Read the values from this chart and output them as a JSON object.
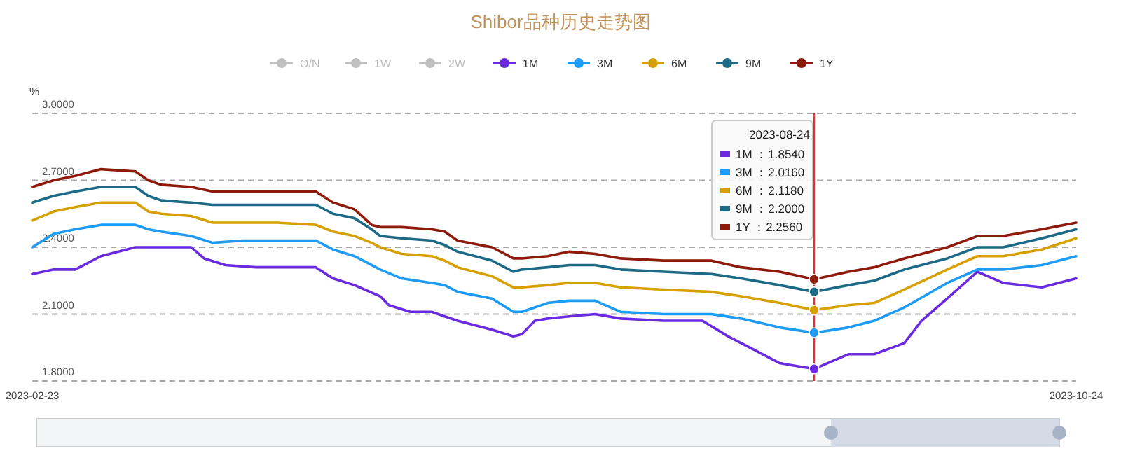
{
  "chart_data": {
    "type": "line",
    "title": "Shibor品种历史走势图",
    "ylabel": "%",
    "legend": "top",
    "grid": "y",
    "line_style": "solid",
    "xlim": [
      "2023-02-23",
      "2023-10-24"
    ],
    "xticks": [
      {
        "value": "2023-02-23",
        "label": "2023-02-23"
      },
      {
        "value": "2023-10-24",
        "label": "2023-10-24"
      }
    ],
    "ylim": [
      1.8,
      3.0
    ],
    "yticks": [
      {
        "value": 1.8,
        "label": "1.8000"
      },
      {
        "value": 2.1,
        "label": "2.1000"
      },
      {
        "value": 2.4,
        "label": "2.4000"
      },
      {
        "value": 2.7,
        "label": "2.7000"
      },
      {
        "value": 3.0,
        "label": "3.0000"
      }
    ],
    "series": [
      {
        "name": "O/N",
        "color": "#c0c0c0"
      },
      {
        "name": "1W",
        "color": "#c0c0c0"
      },
      {
        "name": "2W",
        "color": "#c0c0c0"
      },
      {
        "name": "1M",
        "color": "#6a2be0",
        "x": [
          "2023-02-23",
          "2023-02-28",
          "2023-03-05",
          "2023-03-11",
          "2023-03-19",
          "2023-03-25",
          "2023-04-01",
          "2023-04-04",
          "2023-04-09",
          "2023-04-16",
          "2023-04-30",
          "2023-05-04",
          "2023-05-09",
          "2023-05-15",
          "2023-05-17",
          "2023-05-22",
          "2023-05-27",
          "2023-05-30",
          "2023-06-02",
          "2023-06-10",
          "2023-06-15",
          "2023-06-17",
          "2023-06-20",
          "2023-06-23",
          "2023-06-28",
          "2023-07-04",
          "2023-07-10",
          "2023-07-20",
          "2023-07-29",
          "2023-08-04",
          "2023-08-10",
          "2023-08-16",
          "2023-08-19",
          "2023-08-24",
          "2023-09-01",
          "2023-09-07",
          "2023-09-14",
          "2023-09-18",
          "2023-09-24",
          "2023-10-01",
          "2023-10-07",
          "2023-10-16",
          "2023-10-24"
        ],
        "values": [
          2.28,
          2.3,
          2.3,
          2.36,
          2.4,
          2.4,
          2.4,
          2.35,
          2.32,
          2.31,
          2.31,
          2.26,
          2.23,
          2.18,
          2.14,
          2.11,
          2.11,
          2.09,
          2.07,
          2.03,
          2.0,
          2.01,
          2.07,
          2.08,
          2.09,
          2.1,
          2.08,
          2.07,
          2.07,
          2.0,
          1.94,
          1.88,
          1.87,
          1.854,
          1.92,
          1.92,
          1.97,
          2.07,
          2.17,
          2.29,
          2.24,
          2.22,
          2.26
        ]
      },
      {
        "name": "3M",
        "color": "#1e9bf5",
        "x": [
          "2023-02-23",
          "2023-02-28",
          "2023-03-05",
          "2023-03-11",
          "2023-03-19",
          "2023-03-22",
          "2023-03-25",
          "2023-04-01",
          "2023-04-06",
          "2023-04-13",
          "2023-04-21",
          "2023-04-30",
          "2023-05-04",
          "2023-05-09",
          "2023-05-13",
          "2023-05-15",
          "2023-05-20",
          "2023-05-27",
          "2023-05-30",
          "2023-06-02",
          "2023-06-10",
          "2023-06-15",
          "2023-06-17",
          "2023-06-23",
          "2023-06-28",
          "2023-07-04",
          "2023-07-10",
          "2023-07-20",
          "2023-07-31",
          "2023-08-07",
          "2023-08-16",
          "2023-08-24",
          "2023-09-01",
          "2023-09-07",
          "2023-09-14",
          "2023-09-24",
          "2023-10-01",
          "2023-10-07",
          "2023-10-16",
          "2023-10-24"
        ],
        "values": [
          2.4,
          2.46,
          2.48,
          2.5,
          2.5,
          2.48,
          2.47,
          2.45,
          2.42,
          2.43,
          2.43,
          2.43,
          2.39,
          2.36,
          2.32,
          2.3,
          2.26,
          2.24,
          2.23,
          2.2,
          2.17,
          2.11,
          2.11,
          2.15,
          2.16,
          2.16,
          2.11,
          2.1,
          2.1,
          2.08,
          2.04,
          2.016,
          2.04,
          2.07,
          2.13,
          2.24,
          2.3,
          2.3,
          2.32,
          2.36
        ]
      },
      {
        "name": "6M",
        "color": "#d6a100",
        "x": [
          "2023-02-23",
          "2023-02-28",
          "2023-03-05",
          "2023-03-11",
          "2023-03-19",
          "2023-03-22",
          "2023-03-25",
          "2023-04-01",
          "2023-04-06",
          "2023-04-13",
          "2023-04-21",
          "2023-04-30",
          "2023-05-04",
          "2023-05-09",
          "2023-05-13",
          "2023-05-15",
          "2023-05-20",
          "2023-05-27",
          "2023-05-30",
          "2023-06-02",
          "2023-06-10",
          "2023-06-15",
          "2023-06-17",
          "2023-06-23",
          "2023-06-28",
          "2023-07-04",
          "2023-07-10",
          "2023-07-20",
          "2023-07-31",
          "2023-08-07",
          "2023-08-16",
          "2023-08-24",
          "2023-09-01",
          "2023-09-07",
          "2023-09-14",
          "2023-09-24",
          "2023-10-01",
          "2023-10-07",
          "2023-10-16",
          "2023-10-24"
        ],
        "values": [
          2.52,
          2.56,
          2.58,
          2.6,
          2.6,
          2.56,
          2.55,
          2.54,
          2.51,
          2.51,
          2.51,
          2.5,
          2.47,
          2.45,
          2.42,
          2.4,
          2.37,
          2.36,
          2.34,
          2.31,
          2.27,
          2.22,
          2.22,
          2.23,
          2.24,
          2.24,
          2.22,
          2.21,
          2.2,
          2.18,
          2.15,
          2.118,
          2.14,
          2.15,
          2.21,
          2.3,
          2.36,
          2.36,
          2.39,
          2.44
        ]
      },
      {
        "name": "9M",
        "color": "#1d6a87",
        "x": [
          "2023-02-23",
          "2023-02-28",
          "2023-03-05",
          "2023-03-11",
          "2023-03-19",
          "2023-03-22",
          "2023-03-25",
          "2023-04-01",
          "2023-04-06",
          "2023-04-13",
          "2023-04-21",
          "2023-04-30",
          "2023-05-04",
          "2023-05-09",
          "2023-05-13",
          "2023-05-15",
          "2023-05-20",
          "2023-05-27",
          "2023-05-30",
          "2023-06-02",
          "2023-06-10",
          "2023-06-15",
          "2023-06-17",
          "2023-06-23",
          "2023-06-28",
          "2023-07-04",
          "2023-07-10",
          "2023-07-20",
          "2023-07-31",
          "2023-08-07",
          "2023-08-16",
          "2023-08-24",
          "2023-09-01",
          "2023-09-07",
          "2023-09-14",
          "2023-09-24",
          "2023-10-01",
          "2023-10-07",
          "2023-10-16",
          "2023-10-24"
        ],
        "values": [
          2.6,
          2.63,
          2.65,
          2.67,
          2.67,
          2.63,
          2.61,
          2.6,
          2.59,
          2.59,
          2.59,
          2.59,
          2.55,
          2.53,
          2.48,
          2.45,
          2.44,
          2.43,
          2.41,
          2.38,
          2.34,
          2.29,
          2.3,
          2.31,
          2.32,
          2.32,
          2.3,
          2.29,
          2.28,
          2.26,
          2.23,
          2.2,
          2.23,
          2.25,
          2.3,
          2.35,
          2.4,
          2.4,
          2.44,
          2.48
        ]
      },
      {
        "name": "1Y",
        "color": "#8e1a0c",
        "x": [
          "2023-02-23",
          "2023-02-28",
          "2023-03-05",
          "2023-03-11",
          "2023-03-19",
          "2023-03-22",
          "2023-03-25",
          "2023-04-01",
          "2023-04-06",
          "2023-04-13",
          "2023-04-21",
          "2023-04-30",
          "2023-05-04",
          "2023-05-09",
          "2023-05-13",
          "2023-05-15",
          "2023-05-20",
          "2023-05-27",
          "2023-05-30",
          "2023-06-02",
          "2023-06-10",
          "2023-06-15",
          "2023-06-17",
          "2023-06-23",
          "2023-06-28",
          "2023-07-04",
          "2023-07-10",
          "2023-07-20",
          "2023-07-31",
          "2023-08-07",
          "2023-08-16",
          "2023-08-24",
          "2023-09-01",
          "2023-09-07",
          "2023-09-14",
          "2023-09-24",
          "2023-10-01",
          "2023-10-07",
          "2023-10-16",
          "2023-10-24"
        ],
        "values": [
          2.67,
          2.7,
          2.72,
          2.75,
          2.74,
          2.7,
          2.68,
          2.67,
          2.65,
          2.65,
          2.65,
          2.65,
          2.6,
          2.57,
          2.5,
          2.49,
          2.49,
          2.48,
          2.47,
          2.43,
          2.4,
          2.35,
          2.35,
          2.36,
          2.38,
          2.37,
          2.35,
          2.34,
          2.34,
          2.31,
          2.29,
          2.256,
          2.29,
          2.31,
          2.35,
          2.4,
          2.45,
          2.45,
          2.48,
          2.51
        ]
      }
    ],
    "ref_lines": [
      {
        "axis": "x",
        "value": "2023-08-24",
        "label": "2023-08-24",
        "color": "#ff2020"
      }
    ],
    "annotations": [
      "1M ：1.8540",
      "3M ：2.0160",
      "6M ：2.1180",
      "9M ：2.2000",
      "1Y ：2.2560"
    ]
  }
}
